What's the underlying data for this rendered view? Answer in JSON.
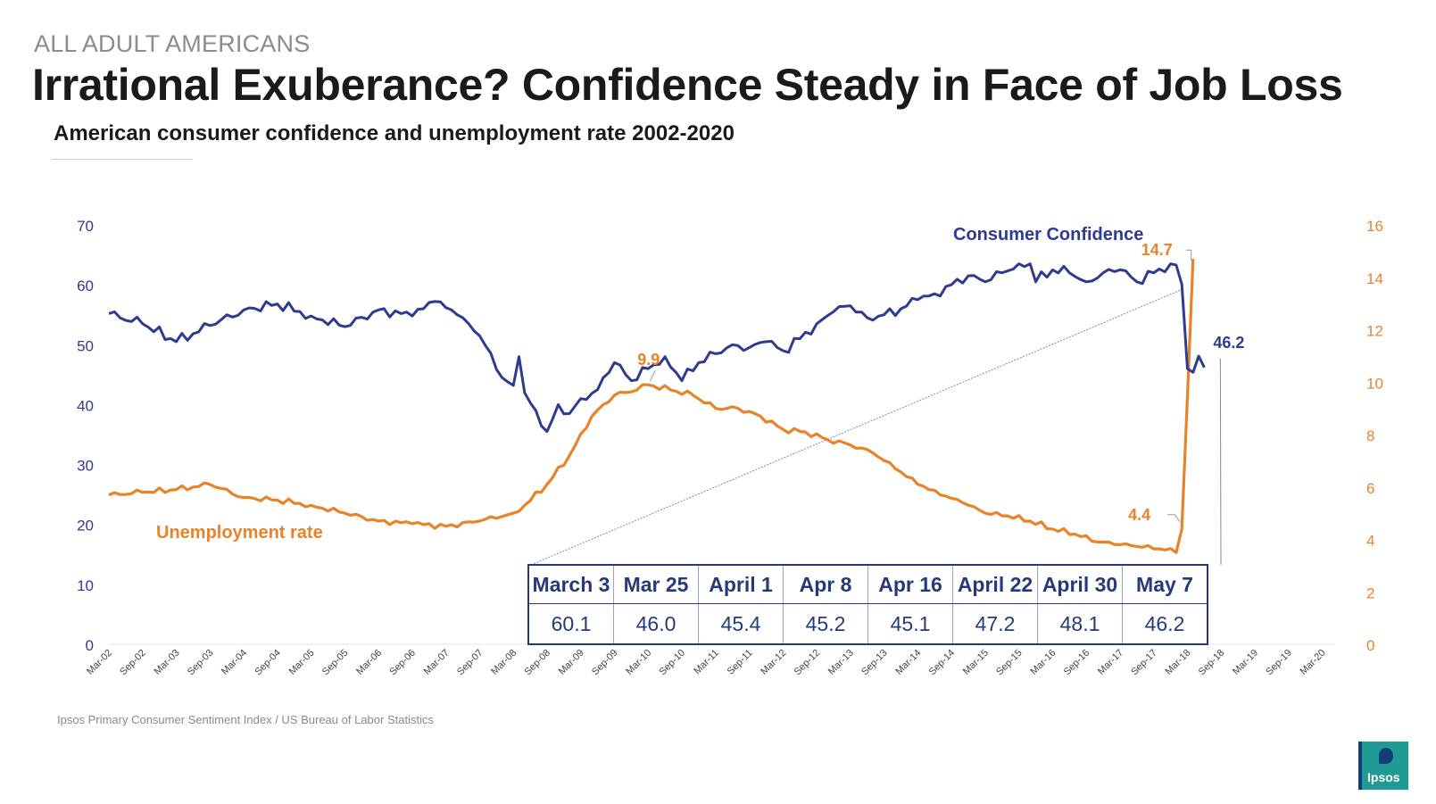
{
  "header": {
    "eyebrow": "ALL ADULT AMERICANS",
    "title": "Irrational Exuberance? Confidence Steady in Face of Job Loss",
    "subtitle": "American consumer confidence and unemployment rate 2002-2020"
  },
  "footer": {
    "source": "Ipsos Primary Consumer Sentiment Index / US Bureau of Labor Statistics",
    "logo_text": "Ipsos"
  },
  "colors": {
    "confidence": "#2e3c8f",
    "unemployment": "#e8832a",
    "axis": "#e6e6e6"
  },
  "chart_data": {
    "type": "line",
    "title": "American consumer confidence and unemployment rate 2002-2020",
    "x_ticks": [
      "Mar-02",
      "Sep-02",
      "Mar-03",
      "Sep-03",
      "Mar-04",
      "Sep-04",
      "Mar-05",
      "Sep-05",
      "Mar-06",
      "Sep-06",
      "Mar-07",
      "Sep-07",
      "Mar-08",
      "Sep-08",
      "Mar-09",
      "Sep-09",
      "Mar-10",
      "Sep-10",
      "Mar-11",
      "Sep-11",
      "Mar-12",
      "Sep-12",
      "Mar-13",
      "Sep-13",
      "Mar-14",
      "Sep-14",
      "Mar-15",
      "Sep-15",
      "Mar-16",
      "Sep-16",
      "Mar-17",
      "Sep-17",
      "Mar-18",
      "Sep-18",
      "Mar-19",
      "Sep-19",
      "Mar-20"
    ],
    "y_left": {
      "ticks": [
        "0",
        "10",
        "20",
        "30",
        "40",
        "50",
        "60",
        "70"
      ],
      "ylim": [
        0,
        70
      ]
    },
    "y_right": {
      "ticks": [
        "0",
        "2",
        "4",
        "6",
        "8",
        "10",
        "12",
        "14",
        "16"
      ],
      "ylim": [
        0,
        16
      ]
    },
    "x_range": [
      0,
      221
    ],
    "series": [
      {
        "name": "Consumer Confidence",
        "axis": "left",
        "points": [
          [
            0,
            55.2
          ],
          [
            6,
            53.5
          ],
          [
            12,
            50.5
          ],
          [
            18,
            53.2
          ],
          [
            24,
            55.8
          ],
          [
            30,
            56.8
          ],
          [
            36,
            54.8
          ],
          [
            42,
            53.0
          ],
          [
            48,
            55.8
          ],
          [
            54,
            54.8
          ],
          [
            58,
            57.2
          ],
          [
            62,
            55.0
          ],
          [
            66,
            51.5
          ],
          [
            70,
            44.5
          ],
          [
            72,
            43.2
          ],
          [
            73,
            48.0
          ],
          [
            74,
            42.0
          ],
          [
            76,
            39.0
          ],
          [
            78,
            35.5
          ],
          [
            80,
            40.0
          ],
          [
            82,
            38.5
          ],
          [
            84,
            41.0
          ],
          [
            87,
            42.5
          ],
          [
            88,
            44.5
          ],
          [
            90,
            47.0
          ],
          [
            93,
            44.0
          ],
          [
            96,
            46.0
          ],
          [
            99,
            48.0
          ],
          [
            102,
            44.0
          ],
          [
            105,
            47.0
          ],
          [
            108,
            48.5
          ],
          [
            111,
            50.0
          ],
          [
            114,
            49.5
          ],
          [
            117,
            50.5
          ],
          [
            120,
            49.0
          ],
          [
            123,
            51.0
          ],
          [
            126,
            53.5
          ],
          [
            129,
            55.5
          ],
          [
            132,
            56.5
          ],
          [
            135,
            54.5
          ],
          [
            138,
            55.0
          ],
          [
            141,
            56.0
          ],
          [
            144,
            57.5
          ],
          [
            147,
            58.5
          ],
          [
            150,
            60.0
          ],
          [
            153,
            61.5
          ],
          [
            156,
            60.5
          ],
          [
            159,
            62.0
          ],
          [
            162,
            63.5
          ],
          [
            164,
            63.5
          ],
          [
            165,
            60.5
          ],
          [
            168,
            62.5
          ],
          [
            171,
            62.0
          ],
          [
            174,
            60.5
          ],
          [
            177,
            62.0
          ],
          [
            180,
            62.5
          ],
          [
            183,
            60.5
          ],
          [
            186,
            62.0
          ],
          [
            189,
            63.5
          ],
          [
            190,
            63.3
          ],
          [
            191,
            60.1
          ],
          [
            192,
            46.0
          ],
          [
            193,
            45.4
          ],
          [
            194,
            48.1
          ],
          [
            195,
            46.2
          ]
        ],
        "end_label": "46.2"
      },
      {
        "name": "Unemployment rate",
        "axis": "right",
        "points": [
          [
            0,
            5.7
          ],
          [
            6,
            5.8
          ],
          [
            12,
            5.9
          ],
          [
            18,
            6.1
          ],
          [
            24,
            5.6
          ],
          [
            30,
            5.5
          ],
          [
            36,
            5.3
          ],
          [
            42,
            5.0
          ],
          [
            48,
            4.7
          ],
          [
            54,
            4.6
          ],
          [
            60,
            4.5
          ],
          [
            66,
            4.7
          ],
          [
            72,
            5.0
          ],
          [
            74,
            5.3
          ],
          [
            78,
            6.1
          ],
          [
            82,
            7.2
          ],
          [
            86,
            8.7
          ],
          [
            90,
            9.5
          ],
          [
            94,
            9.7
          ],
          [
            96,
            9.9
          ],
          [
            100,
            9.7
          ],
          [
            104,
            9.5
          ],
          [
            108,
            9.0
          ],
          [
            112,
            9.0
          ],
          [
            116,
            8.7
          ],
          [
            120,
            8.2
          ],
          [
            124,
            8.1
          ],
          [
            128,
            7.8
          ],
          [
            132,
            7.6
          ],
          [
            136,
            7.3
          ],
          [
            140,
            6.7
          ],
          [
            144,
            6.1
          ],
          [
            148,
            5.7
          ],
          [
            152,
            5.4
          ],
          [
            156,
            5.0
          ],
          [
            160,
            4.9
          ],
          [
            164,
            4.7
          ],
          [
            168,
            4.4
          ],
          [
            172,
            4.2
          ],
          [
            176,
            3.9
          ],
          [
            180,
            3.8
          ],
          [
            184,
            3.7
          ],
          [
            188,
            3.6
          ],
          [
            190,
            3.5
          ],
          [
            191,
            4.4
          ],
          [
            193,
            14.7
          ]
        ],
        "end_label": "14.7"
      }
    ],
    "annotations": [
      {
        "text": "Consumer Confidence",
        "series": "Consumer Confidence"
      },
      {
        "text": "Unemployment rate",
        "series": "Unemployment rate"
      },
      {
        "text": "9.9",
        "x": 96,
        "y": 9.9,
        "axis": "right"
      },
      {
        "text": "14.7",
        "x": 193,
        "y": 14.7,
        "axis": "right"
      },
      {
        "text": "4.4",
        "x": 191,
        "y": 4.4,
        "axis": "right"
      },
      {
        "text": "46.2",
        "x": 195,
        "y": 46.2,
        "axis": "left"
      }
    ],
    "table": {
      "headers": [
        "March 3",
        "Mar 25",
        "April 1",
        "Apr 8",
        "Apr 16",
        "April 22",
        "April 30",
        "May 7"
      ],
      "values": [
        "60.1",
        "46.0",
        "45.4",
        "45.2",
        "45.1",
        "47.2",
        "48.1",
        "46.2"
      ]
    }
  }
}
